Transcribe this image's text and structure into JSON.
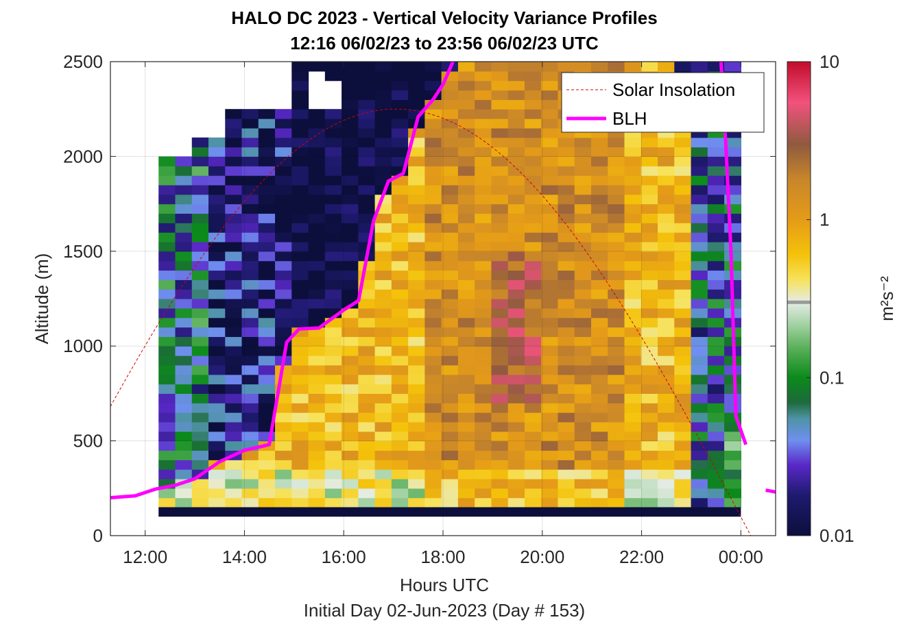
{
  "figure": {
    "title_line1": "HALO DC 2023 - Vertical Velocity Variance Profiles",
    "title_line2": "12:16 06/02/23 to 23:56 06/02/23  UTC",
    "subtitle": "Initial Day 02-Jun-2023 (Day # 153)"
  },
  "colorbar": {
    "label": "m²s⁻²",
    "tick_labels": [
      "10",
      "1",
      "0.1",
      "0.01"
    ],
    "tick_values": [
      10,
      1,
      0.1,
      0.01
    ],
    "scale": "log",
    "range": [
      0.01,
      10
    ],
    "marker_value": 0.3,
    "colormap": [
      {
        "v": 0.01,
        "color": "#0c0f3c"
      },
      {
        "v": 0.018,
        "color": "#1e1a6e"
      },
      {
        "v": 0.028,
        "color": "#5a28c8"
      },
      {
        "v": 0.04,
        "color": "#6f8ff0"
      },
      {
        "v": 0.055,
        "color": "#4f93a6"
      },
      {
        "v": 0.07,
        "color": "#1d6a3a"
      },
      {
        "v": 0.1,
        "color": "#0b8a1b"
      },
      {
        "v": 0.15,
        "color": "#55ad55"
      },
      {
        "v": 0.22,
        "color": "#a6d3a6"
      },
      {
        "v": 0.3,
        "color": "#e4ece4"
      },
      {
        "v": 0.42,
        "color": "#f7e25a"
      },
      {
        "v": 0.6,
        "color": "#f4c20a"
      },
      {
        "v": 1.0,
        "color": "#e59b18"
      },
      {
        "v": 1.8,
        "color": "#c8862a"
      },
      {
        "v": 3.0,
        "color": "#8f5a3f"
      },
      {
        "v": 5.5,
        "color": "#f2527e"
      },
      {
        "v": 10,
        "color": "#c20c2a"
      }
    ]
  },
  "chart_data": {
    "type": "heatmap",
    "xlabel": "Hours UTC",
    "ylabel": "Altitude (m)",
    "x_ticks": [
      12,
      14,
      16,
      18,
      20,
      22,
      24
    ],
    "x_tick_labels": [
      "12:00",
      "14:00",
      "16:00",
      "18:00",
      "20:00",
      "22:00",
      "00:00"
    ],
    "y_ticks": [
      0,
      500,
      1000,
      1500,
      2000,
      2500
    ],
    "y_tick_labels": [
      "0",
      "500",
      "1000",
      "1500",
      "2000",
      "2500"
    ],
    "xlim": [
      11.3,
      24.7
    ],
    "ylim": [
      0,
      2500
    ],
    "grid": true,
    "legend": {
      "position": "top-right",
      "entries": [
        "Solar Insolation",
        "BLH"
      ]
    },
    "heatmap": {
      "x_start": 12.27,
      "x_end": 24.0,
      "y_start": 100,
      "y_end": 2500,
      "time_step_h": 0.333,
      "altitude_step_m": 50,
      "surface_layer": {
        "y0": 100,
        "y1": 150,
        "value": 0.01
      }
    },
    "blh": {
      "name": "BLH",
      "color": "#ff00ff",
      "segments": [
        [
          [
            11.3,
            200
          ],
          [
            11.8,
            210
          ],
          [
            12.2,
            245
          ],
          [
            12.6,
            265
          ],
          [
            13.0,
            300
          ],
          [
            13.5,
            390
          ],
          [
            14.0,
            450
          ],
          [
            14.5,
            480
          ],
          [
            14.85,
            1020
          ],
          [
            15.1,
            1090
          ],
          [
            15.5,
            1095
          ],
          [
            16.0,
            1190
          ],
          [
            16.3,
            1240
          ],
          [
            16.6,
            1660
          ],
          [
            16.9,
            1870
          ],
          [
            17.2,
            1910
          ],
          [
            17.5,
            2210
          ],
          [
            17.8,
            2300
          ],
          [
            18.0,
            2380
          ],
          [
            18.2,
            2500
          ]
        ],
        [
          [
            23.6,
            2500
          ],
          [
            23.7,
            2050
          ],
          [
            23.8,
            1500
          ],
          [
            23.9,
            630
          ],
          [
            24.1,
            480
          ]
        ],
        [
          [
            24.5,
            240
          ],
          [
            24.7,
            230
          ]
        ]
      ]
    },
    "solar": {
      "name": "Solar Insolation",
      "color": "#d40000",
      "peak_time": 17.05,
      "peak_value": 2250,
      "half_width_h": 7.15,
      "range": [
        11.3,
        24.7
      ]
    }
  }
}
